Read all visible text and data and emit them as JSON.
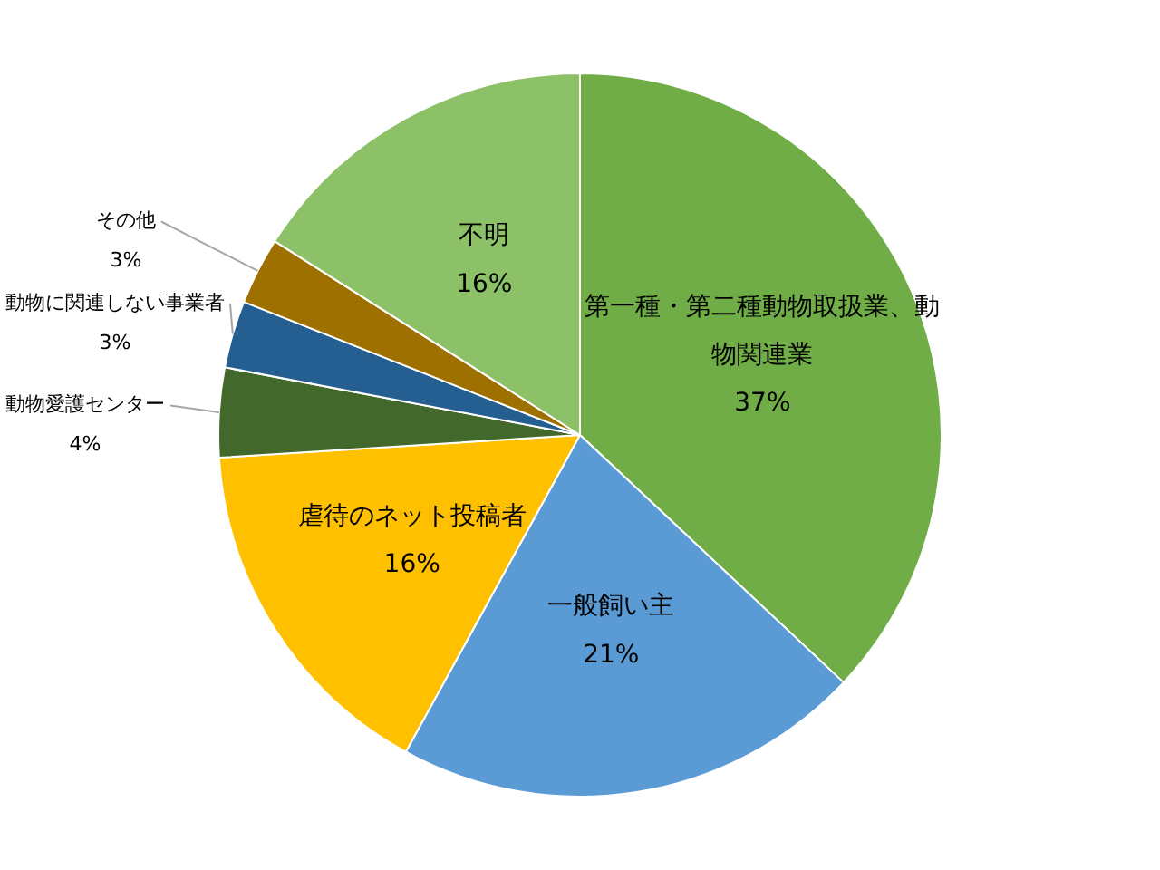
{
  "chart_data": {
    "type": "pie",
    "categories": [
      "第一種・第二種動物取扱業、動物関連業",
      "一般飼い主",
      "虐待のネット投稿者",
      "動物愛護センター",
      "動物に関連しない事業者",
      "その他",
      "不明"
    ],
    "values": [
      37,
      21,
      16,
      4,
      3,
      3,
      16
    ],
    "value_labels": [
      "37%",
      "21%",
      "16%",
      "4%",
      "3%",
      "3%",
      "16%"
    ],
    "colors": [
      "#70ad47",
      "#5b9bd5",
      "#ffc000",
      "#43682b",
      "#255e91",
      "#9e7000",
      "#8cc168"
    ],
    "legend": false
  }
}
